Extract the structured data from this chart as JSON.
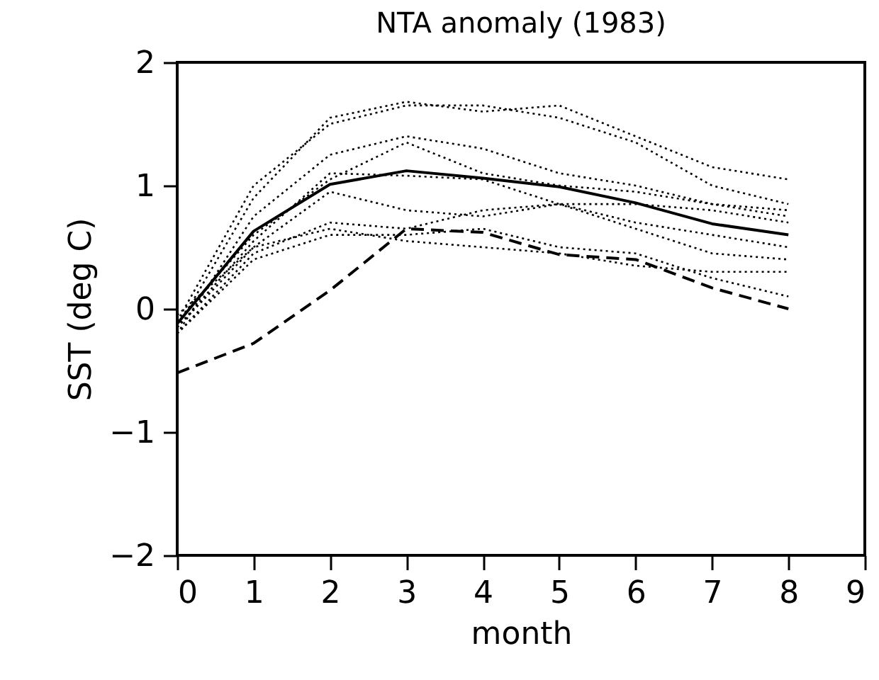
{
  "chart_data": {
    "type": "line",
    "title": "NTA anomaly (1983)",
    "xlabel": "month",
    "ylabel": "SST (deg C)",
    "x": [
      0,
      1,
      2,
      3,
      4,
      5,
      6,
      7,
      8
    ],
    "xlim": [
      0,
      9
    ],
    "xticks": [
      0,
      1,
      2,
      3,
      4,
      5,
      6,
      7,
      8,
      9
    ],
    "ylim": [
      -2,
      2
    ],
    "yticks": [
      -2,
      -1,
      0,
      1,
      2
    ],
    "grid": false,
    "marker": "none",
    "series": [
      {
        "color": "#000000",
        "line_style": "dotted",
        "values": [
          -0.15,
          0.9,
          1.55,
          1.68,
          1.6,
          1.65,
          1.4,
          1.15,
          1.05
        ]
      },
      {
        "color": "#000000",
        "line_style": "dotted",
        "values": [
          -0.1,
          1.0,
          1.5,
          1.65,
          1.65,
          1.55,
          1.35,
          1.0,
          0.85
        ]
      },
      {
        "color": "#000000",
        "line_style": "dotted",
        "values": [
          -0.2,
          0.75,
          1.25,
          1.4,
          1.3,
          1.1,
          1.0,
          0.85,
          0.8
        ]
      },
      {
        "color": "#000000",
        "line_style": "dotted",
        "values": [
          -0.1,
          0.6,
          1.05,
          1.35,
          1.1,
          1.0,
          0.95,
          0.85,
          0.75
        ]
      },
      {
        "color": "#000000",
        "line_style": "dotted",
        "values": [
          -0.15,
          0.55,
          1.1,
          1.08,
          1.05,
          0.85,
          0.7,
          0.6,
          0.5
        ]
      },
      {
        "color": "#000000",
        "line_style": "dotted",
        "values": [
          -0.05,
          0.5,
          0.95,
          0.8,
          0.75,
          0.85,
          0.85,
          0.8,
          0.7
        ]
      },
      {
        "color": "#000000",
        "line_style": "dotted",
        "values": [
          -0.2,
          0.45,
          0.7,
          0.65,
          0.8,
          0.85,
          0.65,
          0.45,
          0.4
        ]
      },
      {
        "color": "#000000",
        "line_style": "dotted",
        "values": [
          -0.15,
          0.5,
          0.65,
          0.55,
          0.5,
          0.45,
          0.35,
          0.3,
          0.3
        ]
      },
      {
        "color": "#000000",
        "line_style": "dotted",
        "values": [
          -0.2,
          0.4,
          0.6,
          0.6,
          0.65,
          0.5,
          0.45,
          0.25,
          0.1
        ]
      },
      {
        "color": "#000000",
        "line_style": "solid",
        "values": [
          -0.12,
          0.63,
          1.01,
          1.12,
          1.06,
          0.99,
          0.86,
          0.69,
          0.6
        ]
      },
      {
        "color": "#000000",
        "line_style": "dashed",
        "values": [
          -0.52,
          -0.28,
          0.15,
          0.65,
          0.62,
          0.44,
          0.4,
          0.17,
          0.0
        ]
      }
    ]
  }
}
